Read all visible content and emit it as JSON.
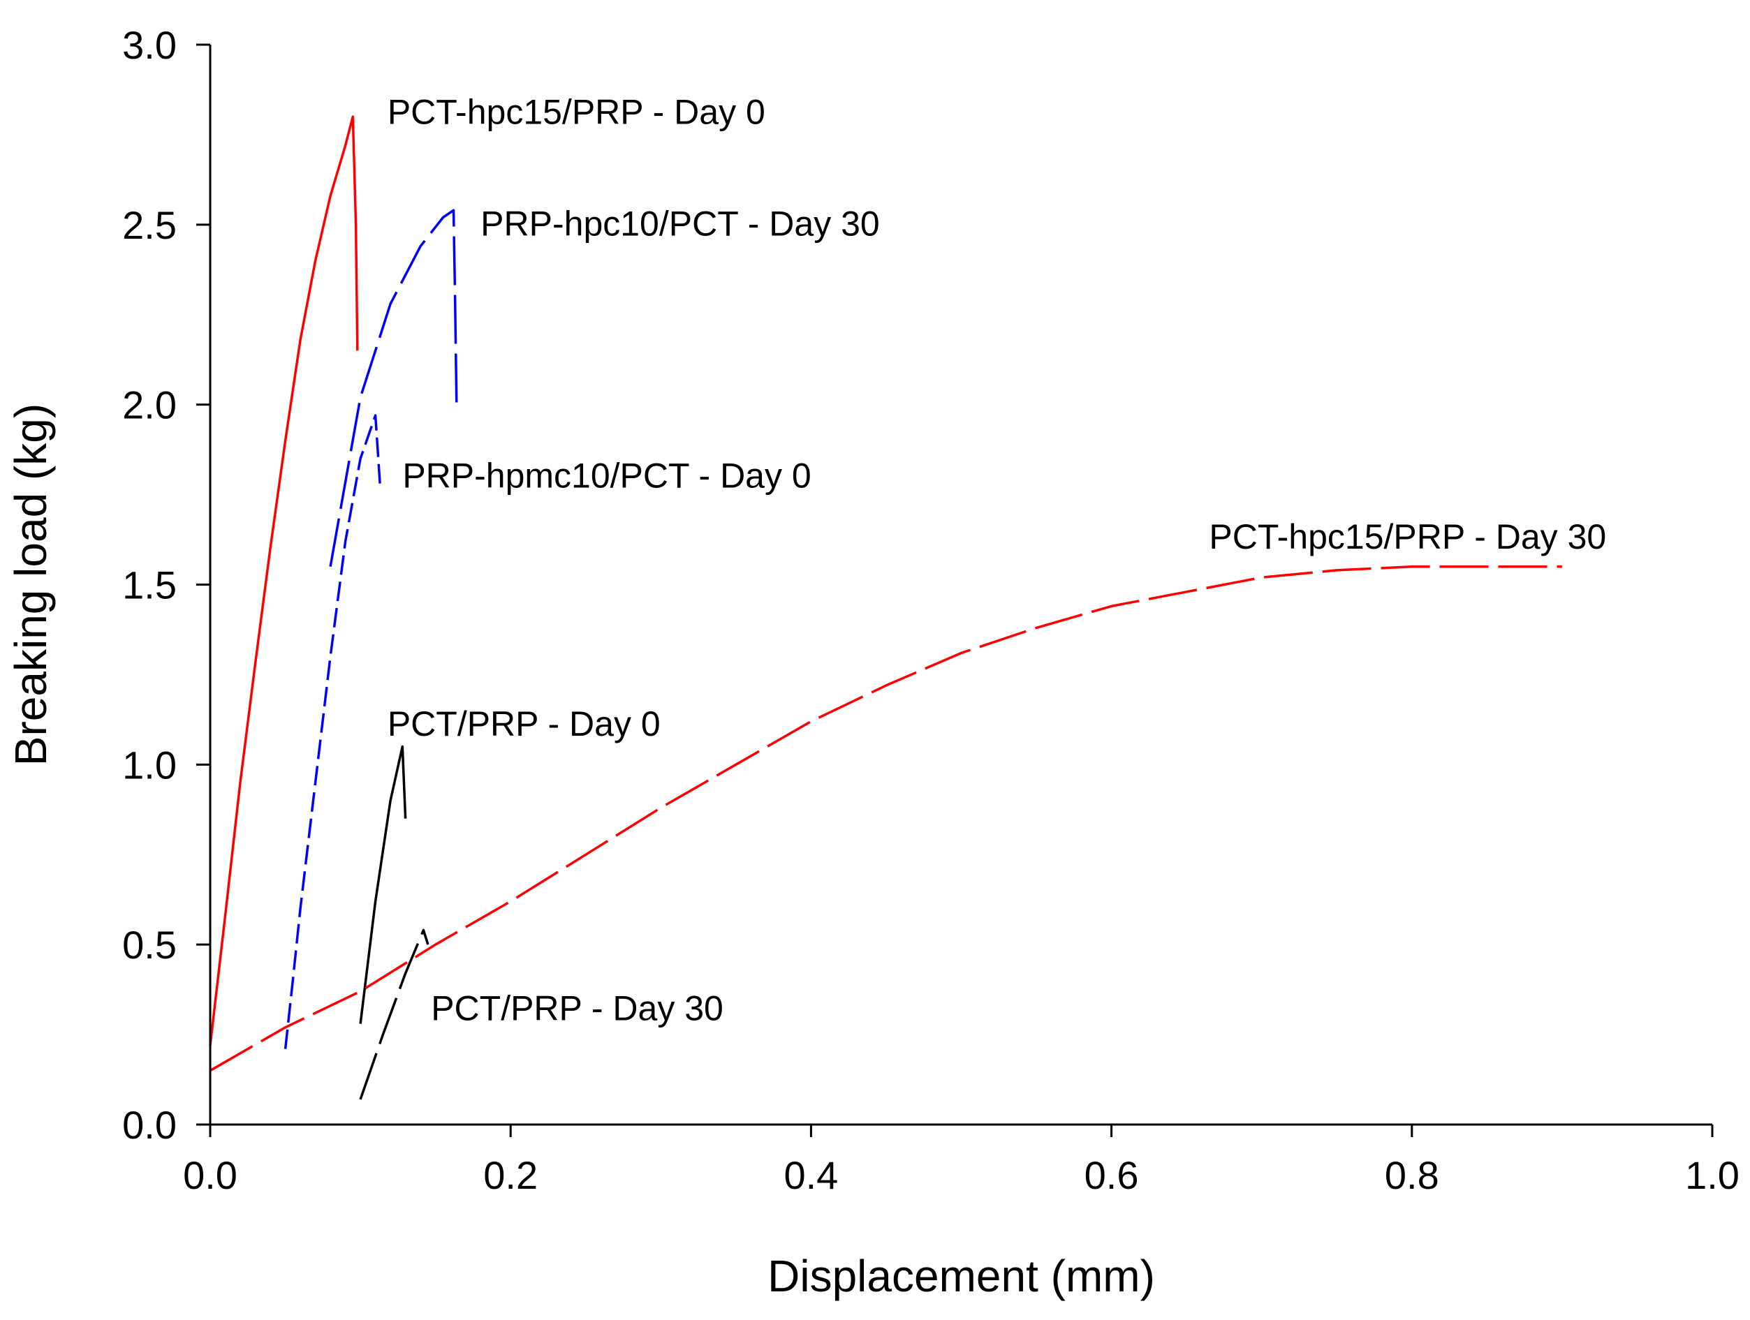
{
  "chart_data": {
    "type": "line",
    "title": "",
    "xlabel": "Displacement (mm)",
    "ylabel": "Breaking load (kg)",
    "xlim": [
      0.0,
      1.0
    ],
    "ylim": [
      0.0,
      3.0
    ],
    "x_ticks": [
      0.0,
      0.2,
      0.4,
      0.6,
      0.8,
      1.0
    ],
    "x_tick_labels": [
      "0.0",
      "0.2",
      "0.4",
      "0.6",
      "0.8",
      "1.0"
    ],
    "y_ticks": [
      0.0,
      0.5,
      1.0,
      1.5,
      2.0,
      2.5,
      3.0
    ],
    "y_tick_labels": [
      "0.0",
      "0.5",
      "1.0",
      "1.5",
      "2.0",
      "2.5",
      "3.0"
    ],
    "grid": false,
    "series": [
      {
        "name": "PCT-hpc15/PRP - Day 0",
        "color": "#ff0000",
        "dash": "solid",
        "x": [
          0.0,
          0.01,
          0.02,
          0.03,
          0.04,
          0.05,
          0.06,
          0.07,
          0.08,
          0.09,
          0.095,
          0.097,
          0.098
        ],
        "y": [
          0.22,
          0.58,
          0.95,
          1.28,
          1.6,
          1.9,
          2.18,
          2.4,
          2.58,
          2.72,
          2.8,
          2.5,
          2.15
        ]
      },
      {
        "name": "PRP-hpc10/PCT - Day 30",
        "color": "#0000ff",
        "dash": "long-dash",
        "x": [
          0.08,
          0.1,
          0.12,
          0.14,
          0.155,
          0.162,
          0.163,
          0.164
        ],
        "y": [
          1.55,
          2.02,
          2.28,
          2.44,
          2.52,
          2.54,
          2.3,
          2.0
        ]
      },
      {
        "name": "PRP-hpmc10/PCT - Day 0",
        "color": "#0000ff",
        "dash": "short-dash",
        "x": [
          0.05,
          0.055,
          0.06,
          0.07,
          0.08,
          0.09,
          0.1,
          0.11,
          0.113
        ],
        "y": [
          0.21,
          0.4,
          0.6,
          0.95,
          1.3,
          1.62,
          1.85,
          1.97,
          1.78
        ]
      },
      {
        "name": "PCT/PRP - Day 0",
        "color": "#000000",
        "dash": "solid",
        "x": [
          0.1,
          0.11,
          0.12,
          0.128,
          0.13
        ],
        "y": [
          0.28,
          0.62,
          0.9,
          1.05,
          0.85
        ]
      },
      {
        "name": "PCT/PRP - Day 30",
        "color": "#000000",
        "dash": "long-dash",
        "x": [
          0.1,
          0.115,
          0.13,
          0.142,
          0.145
        ],
        "y": [
          0.07,
          0.25,
          0.42,
          0.54,
          0.5
        ]
      },
      {
        "name": "PCT-hpc15/PRP - Day 30",
        "color": "#ff0000",
        "dash": "long-dash",
        "x": [
          0.0,
          0.05,
          0.1,
          0.15,
          0.2,
          0.25,
          0.3,
          0.35,
          0.4,
          0.45,
          0.5,
          0.55,
          0.6,
          0.65,
          0.7,
          0.75,
          0.8,
          0.85,
          0.9
        ],
        "y": [
          0.15,
          0.27,
          0.37,
          0.5,
          0.62,
          0.75,
          0.88,
          1.0,
          1.12,
          1.22,
          1.31,
          1.38,
          1.44,
          1.48,
          1.52,
          1.54,
          1.55,
          1.55,
          1.55
        ]
      }
    ],
    "annotations": [
      {
        "text": "PCT-hpc15/PRP - Day 0",
        "x": 0.118,
        "y": 2.78,
        "series": 0
      },
      {
        "text": "PRP-hpc10/PCT - Day 30",
        "x": 0.18,
        "y": 2.47,
        "series": 1
      },
      {
        "text": "PRP-hpmc10/PCT - Day 0",
        "x": 0.128,
        "y": 1.77,
        "series": 2
      },
      {
        "text": "PCT/PRP - Day 0",
        "x": 0.118,
        "y": 1.08,
        "series": 3
      },
      {
        "text": "PCT/PRP - Day 30",
        "x": 0.147,
        "y": 0.29,
        "series": 4
      },
      {
        "text": "PCT-hpc15/PRP - Day 30",
        "x": 0.665,
        "y": 1.6,
        "series": 5
      }
    ]
  }
}
